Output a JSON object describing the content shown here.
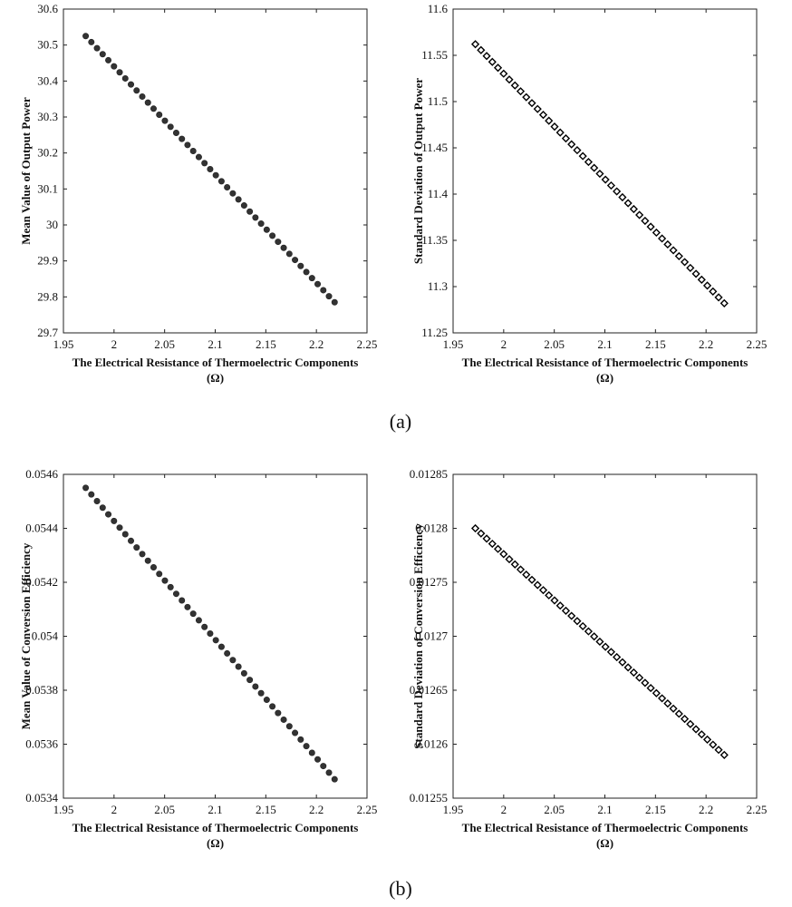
{
  "figure": {
    "panel_labels": [
      "(a)",
      "(b)"
    ]
  },
  "chart_data": [
    {
      "type": "scatter",
      "marker": "circle",
      "color": "#333333",
      "xlabel": "The Electrical Resistance of Thermoelectric Components",
      "xlabel_unit": "(Ω)",
      "ylabel": "Mean Value of Output Power",
      "xlim": [
        1.95,
        2.25
      ],
      "ylim": [
        29.7,
        30.6
      ],
      "xticks": [
        "1.95",
        "2",
        "2.05",
        "2.1",
        "2.15",
        "2.2",
        "2.25"
      ],
      "yticks": [
        "29.7",
        "29.8",
        "29.9",
        "30",
        "30.1",
        "30.2",
        "30.3",
        "30.4",
        "30.5",
        "30.6"
      ],
      "series": [
        {
          "x_start": 1.972,
          "x_end": 2.218,
          "y_start": 30.525,
          "y_end": 29.785,
          "count": 45
        }
      ]
    },
    {
      "type": "scatter",
      "marker": "diamond",
      "color": "#000000",
      "xlabel": "The Electrical Resistance of Thermoelectric Components",
      "xlabel_unit": "(Ω)",
      "ylabel": "Standard Deviation of Output Power",
      "xlim": [
        1.95,
        2.25
      ],
      "ylim": [
        11.25,
        11.6
      ],
      "xticks": [
        "1.95",
        "2",
        "2.05",
        "2.1",
        "2.15",
        "2.2",
        "2.25"
      ],
      "yticks": [
        "11.25",
        "11.3",
        "11.35",
        "11.4",
        "11.45",
        "11.5",
        "11.55",
        "11.6"
      ],
      "series": [
        {
          "x_start": 1.972,
          "x_end": 2.218,
          "y_start": 11.562,
          "y_end": 11.282,
          "count": 45
        }
      ]
    },
    {
      "type": "scatter",
      "marker": "circle",
      "color": "#333333",
      "xlabel": "The Electrical Resistance of Thermoelectric Components",
      "xlabel_unit": "(Ω)",
      "ylabel": "Mean Value of Conversion Efficiency",
      "xlim": [
        1.95,
        2.25
      ],
      "ylim": [
        0.0534,
        0.0546
      ],
      "xticks": [
        "1.95",
        "2",
        "2.05",
        "2.1",
        "2.15",
        "2.2",
        "2.25"
      ],
      "yticks": [
        "0.0534",
        "0.0536",
        "0.0538",
        "0.054",
        "0.0542",
        "0.0544",
        "0.0546"
      ],
      "series": [
        {
          "x_start": 1.972,
          "x_end": 2.218,
          "y_start": 0.05455,
          "y_end": 0.05347,
          "count": 45
        }
      ]
    },
    {
      "type": "scatter",
      "marker": "diamond",
      "color": "#000000",
      "xlabel": "The Electrical Resistance of Thermoelectric Components",
      "xlabel_unit": "(Ω)",
      "ylabel": "Standard Deviation of Conversion Efficiency",
      "xlim": [
        1.95,
        2.25
      ],
      "ylim": [
        0.01255,
        0.01285
      ],
      "xticks": [
        "1.95",
        "2",
        "2.05",
        "2.1",
        "2.15",
        "2.2",
        "2.25"
      ],
      "yticks": [
        "0.01255",
        "0.0126",
        "0.01265",
        "0.0127",
        "0.01275",
        "0.0128",
        "0.01285"
      ],
      "series": [
        {
          "x_start": 1.972,
          "x_end": 2.218,
          "y_start": 0.0128,
          "y_end": 0.01259,
          "count": 45
        }
      ]
    }
  ]
}
